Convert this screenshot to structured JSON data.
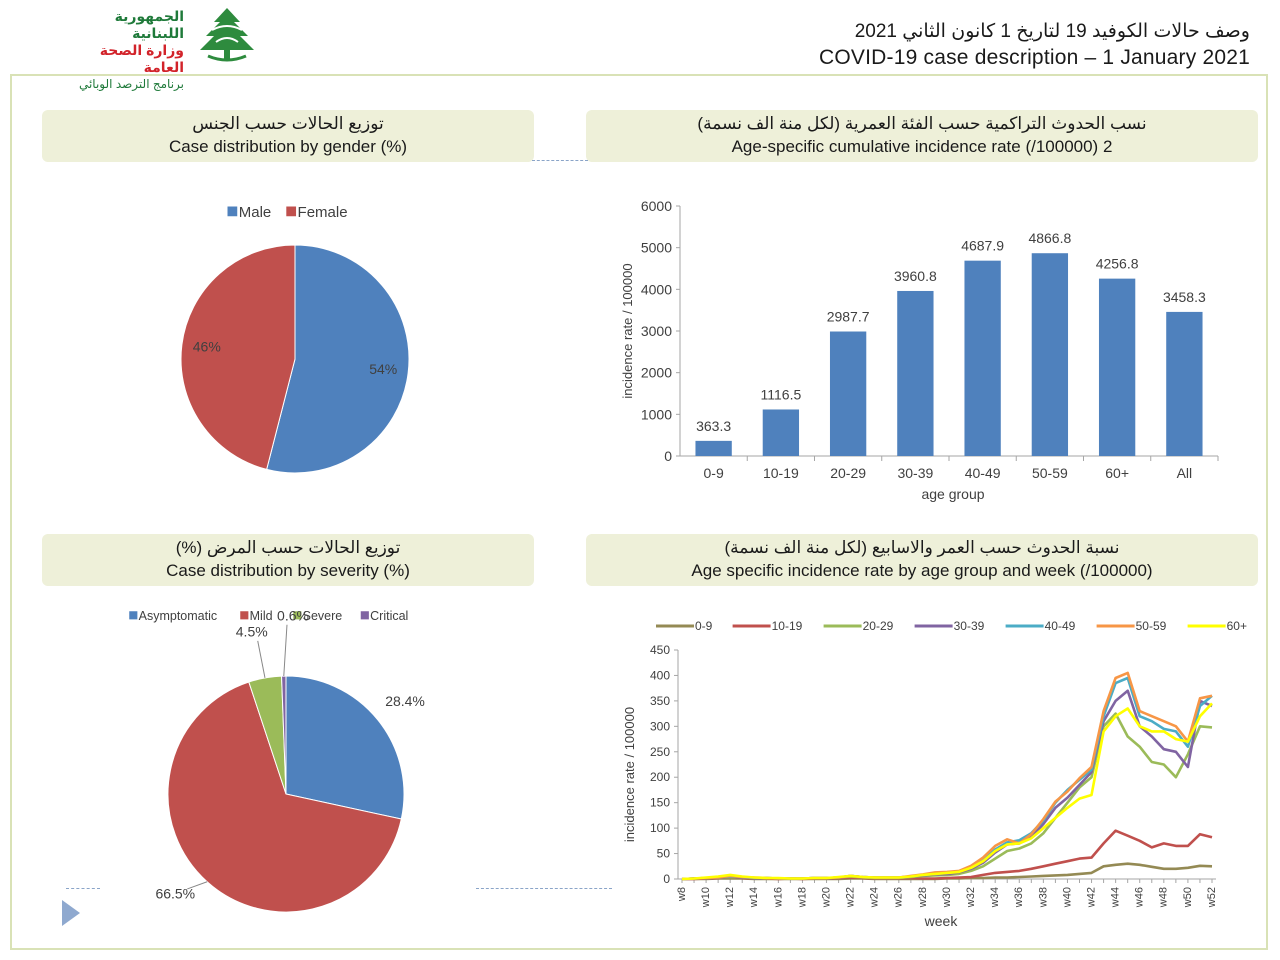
{
  "header": {
    "logo_line1": "الجمهورية اللبنانية",
    "logo_line2": "وزارة الصحة العامة",
    "logo_line3": "برنامج الترصد الوبائي",
    "title_ar": "وصف حالات الكوفيد 19 لتاريخ 1 كانون الثاني 2021",
    "title_en": "COVID-19 case description – 1 January 2021"
  },
  "panels": {
    "gender": {
      "title_ar": "توزيع الحالات حسب الجنس",
      "title_en": "Case distribution by gender (%)"
    },
    "age_rate": {
      "title_ar": "نسب الحدوث التراكمية حسب الفئة العمرية (لكل منة الف نسمة)",
      "title_en": "Age-specific cumulative incidence rate (/100000) 2"
    },
    "severity": {
      "title_ar": "توزيع الحالات حسب المرض (%)",
      "title_en": "Case distribution by severity (%)"
    },
    "weekly": {
      "title_ar": "نسبة الحدوث حسب العمر والاسابيع (لكل منة الف نسمة)",
      "title_en": "Age specific incidence rate by age group and week (/100000)"
    }
  },
  "chart_data": [
    {
      "type": "pie",
      "labels": [
        "Male",
        "Female"
      ],
      "values": [
        54,
        46
      ],
      "value_labels": [
        "54%",
        "46%"
      ],
      "colors": [
        "#4f81bd",
        "#c0504d"
      ],
      "legend": "top"
    },
    {
      "type": "bar",
      "categories": [
        "0-9",
        "10-19",
        "20-29",
        "30-39",
        "40-49",
        "50-59",
        "60+",
        "All"
      ],
      "values": [
        363.3,
        1116.5,
        2987.7,
        3960.8,
        4687.9,
        4866.8,
        4256.8,
        3458.3
      ],
      "value_labels": [
        "363.3",
        "1116.5",
        "2987.7",
        "3960.8",
        "4687.9",
        "4866.8",
        "4256.8",
        "3458.3"
      ],
      "xlabel": "age group",
      "ylabel": "incidence rate / 100000",
      "ylim": [
        0,
        6000
      ],
      "yticks": [
        "0",
        "1000",
        "2000",
        "3000",
        "4000",
        "5000",
        "6000"
      ],
      "color": "#4f81bd"
    },
    {
      "type": "pie",
      "labels": [
        "Asymptomatic",
        "Mild",
        "Severe",
        "Critical"
      ],
      "values": [
        28.4,
        66.5,
        4.5,
        0.6
      ],
      "value_labels": [
        "28.4%",
        "66.5%",
        "4.5%",
        "0.6%"
      ],
      "colors": [
        "#4f81bd",
        "#c0504d",
        "#9bbb59",
        "#8064a2"
      ],
      "legend": "top"
    },
    {
      "type": "line",
      "xlabel": "week",
      "ylabel": "incidence rate / 100000",
      "ylim": [
        0,
        450
      ],
      "yticks": [
        "0",
        "50",
        "100",
        "150",
        "200",
        "250",
        "300",
        "350",
        "400",
        "450"
      ],
      "x": [
        "w8",
        "w9",
        "w10",
        "w11",
        "w12",
        "w13",
        "w14",
        "w15",
        "w16",
        "w17",
        "w18",
        "w19",
        "w20",
        "w21",
        "w22",
        "w23",
        "w24",
        "w25",
        "w26",
        "w27",
        "w28",
        "w29",
        "w30",
        "w31",
        "w32",
        "w33",
        "w34",
        "w35",
        "w36",
        "w37",
        "w38",
        "w39",
        "w40",
        "w41",
        "w42",
        "w43",
        "w44",
        "w45",
        "w46",
        "w47",
        "w48",
        "w49",
        "w50",
        "w51",
        "w52"
      ],
      "xtick_labels": [
        "w8",
        "w10",
        "w12",
        "w14",
        "w16",
        "w18",
        "w20",
        "w22",
        "w24",
        "w26",
        "w28",
        "w30",
        "w32",
        "w34",
        "w36",
        "w38",
        "w40",
        "w42",
        "w44",
        "w46",
        "w48",
        "w50",
        "w52"
      ],
      "series": [
        {
          "name": "0-9",
          "color": "#948a54",
          "values": [
            0,
            0,
            0,
            1,
            1,
            1,
            0,
            0,
            0,
            0,
            0,
            0,
            0,
            0,
            1,
            1,
            0,
            0,
            0,
            0,
            0,
            0,
            1,
            1,
            2,
            2,
            3,
            3,
            4,
            5,
            6,
            7,
            8,
            10,
            12,
            25,
            28,
            30,
            28,
            24,
            20,
            20,
            22,
            26,
            25
          ]
        },
        {
          "name": "10-19",
          "color": "#c0504d",
          "values": [
            0,
            0,
            1,
            2,
            4,
            2,
            1,
            1,
            0,
            1,
            0,
            1,
            1,
            2,
            3,
            2,
            1,
            1,
            1,
            2,
            1,
            1,
            2,
            3,
            4,
            8,
            12,
            14,
            16,
            20,
            25,
            30,
            35,
            40,
            42,
            70,
            95,
            85,
            75,
            62,
            70,
            65,
            65,
            88,
            82
          ]
        },
        {
          "name": "20-29",
          "color": "#9bbb59",
          "values": [
            0,
            1,
            2,
            3,
            4,
            3,
            2,
            2,
            1,
            1,
            1,
            2,
            2,
            3,
            5,
            3,
            2,
            2,
            2,
            4,
            6,
            7,
            8,
            10,
            16,
            25,
            40,
            55,
            60,
            70,
            90,
            120,
            150,
            180,
            200,
            300,
            325,
            280,
            260,
            230,
            225,
            200,
            245,
            300,
            298
          ]
        },
        {
          "name": "30-39",
          "color": "#8064a2",
          "values": [
            0,
            1,
            2,
            3,
            5,
            3,
            2,
            2,
            1,
            1,
            1,
            2,
            2,
            3,
            6,
            4,
            3,
            3,
            3,
            5,
            7,
            9,
            10,
            13,
            20,
            32,
            52,
            68,
            70,
            82,
            108,
            140,
            160,
            185,
            210,
            310,
            350,
            370,
            300,
            280,
            255,
            250,
            220,
            350,
            340
          ]
        },
        {
          "name": "40-49",
          "color": "#4bacc6",
          "values": [
            0,
            1,
            2,
            3,
            5,
            4,
            2,
            2,
            1,
            1,
            1,
            2,
            2,
            3,
            6,
            4,
            3,
            3,
            3,
            5,
            8,
            10,
            12,
            15,
            24,
            36,
            58,
            72,
            76,
            90,
            115,
            150,
            175,
            195,
            215,
            320,
            385,
            395,
            320,
            310,
            295,
            290,
            260,
            340,
            360
          ]
        },
        {
          "name": "50-59",
          "color": "#f79646",
          "values": [
            0,
            1,
            2,
            3,
            6,
            4,
            3,
            2,
            1,
            1,
            1,
            2,
            2,
            3,
            6,
            4,
            3,
            3,
            3,
            6,
            9,
            13,
            14,
            16,
            26,
            42,
            65,
            78,
            70,
            88,
            118,
            152,
            172,
            198,
            220,
            330,
            395,
            405,
            330,
            320,
            310,
            300,
            270,
            355,
            360
          ]
        },
        {
          "name": "60+",
          "color": "#ffff00",
          "values": [
            0,
            1,
            3,
            5,
            8,
            5,
            3,
            2,
            2,
            1,
            1,
            2,
            2,
            4,
            6,
            4,
            3,
            3,
            3,
            5,
            8,
            10,
            12,
            14,
            22,
            35,
            55,
            68,
            70,
            80,
            100,
            120,
            140,
            158,
            165,
            290,
            320,
            335,
            300,
            290,
            290,
            275,
            270,
            320,
            345
          ]
        }
      ]
    }
  ]
}
